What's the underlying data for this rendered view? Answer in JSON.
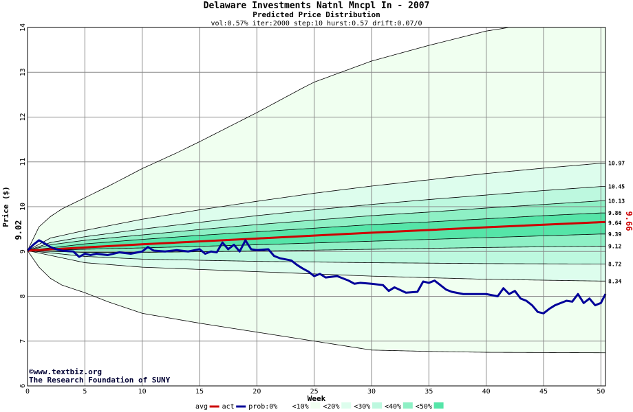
{
  "chart_data": {
    "type": "line",
    "title": "Delaware Investments Natnl Mncpl In - 2007",
    "subtitle": "Predicted Price Distribution",
    "params": "vol:0.57% iter:2000 step:10 hurst:0.57 drift:0.07/0",
    "xlabel": "Week",
    "ylabel": "Price ($)",
    "xlim": [
      0,
      50.4
    ],
    "ylim": [
      6,
      14
    ],
    "x_ticks": [
      0,
      5,
      10,
      15,
      20,
      25,
      30,
      35,
      40,
      45,
      50
    ],
    "y_ticks": [
      6,
      7,
      8,
      9,
      10,
      11,
      12,
      13,
      14
    ],
    "grid": true,
    "start_price": 9.02,
    "start_price_label": "9.02",
    "end_avg_label": "9.66",
    "band_end_labels": [
      "10.97",
      "10.45",
      "10.13",
      "9.86",
      "9.64",
      "9.39",
      "9.12",
      "8.72",
      "8.34"
    ],
    "bands": [
      {
        "name": "outer-upper",
        "x": [
          0,
          1,
          2,
          3,
          5,
          7,
          10,
          13,
          15,
          20,
          24,
          25,
          30,
          35,
          40,
          42,
          50
        ],
        "y": [
          9.02,
          9.55,
          9.78,
          9.95,
          10.2,
          10.45,
          10.85,
          11.2,
          11.45,
          12.1,
          12.65,
          12.78,
          13.25,
          13.6,
          13.92,
          14.0,
          14.0
        ]
      },
      {
        "name": "10.97",
        "x": [
          0,
          2,
          5,
          10,
          15,
          20,
          25,
          30,
          35,
          40,
          45,
          50
        ],
        "y": [
          9.02,
          9.3,
          9.47,
          9.72,
          9.93,
          10.12,
          10.3,
          10.46,
          10.6,
          10.74,
          10.86,
          10.97
        ]
      },
      {
        "name": "10.45",
        "x": [
          0,
          2,
          5,
          10,
          15,
          20,
          25,
          30,
          35,
          40,
          45,
          50
        ],
        "y": [
          9.02,
          9.2,
          9.33,
          9.5,
          9.65,
          9.8,
          9.93,
          10.05,
          10.16,
          10.26,
          10.36,
          10.45
        ]
      },
      {
        "name": "10.13",
        "x": [
          0,
          2,
          5,
          10,
          15,
          20,
          25,
          30,
          35,
          40,
          45,
          50
        ],
        "y": [
          9.02,
          9.15,
          9.25,
          9.37,
          9.49,
          9.6,
          9.7,
          9.8,
          9.88,
          9.97,
          10.05,
          10.13
        ]
      },
      {
        "name": "9.86",
        "x": [
          0,
          5,
          10,
          15,
          20,
          25,
          30,
          35,
          40,
          45,
          50
        ],
        "y": [
          9.02,
          9.17,
          9.27,
          9.36,
          9.44,
          9.52,
          9.6,
          9.66,
          9.73,
          9.8,
          9.86
        ]
      },
      {
        "name": "9.64",
        "x": [
          0,
          5,
          10,
          20,
          30,
          40,
          50
        ],
        "y": [
          9.02,
          9.1,
          9.17,
          9.3,
          9.43,
          9.54,
          9.64
        ]
      },
      {
        "name": "9.39",
        "x": [
          0,
          5,
          10,
          20,
          30,
          40,
          50
        ],
        "y": [
          9.02,
          9.05,
          9.08,
          9.15,
          9.23,
          9.31,
          9.39
        ]
      },
      {
        "name": "9.12",
        "x": [
          0,
          5,
          10,
          20,
          30,
          40,
          50
        ],
        "y": [
          9.02,
          8.98,
          8.98,
          9.01,
          9.05,
          9.09,
          9.12
        ]
      },
      {
        "name": "8.72",
        "x": [
          0,
          5,
          10,
          20,
          30,
          40,
          50
        ],
        "y": [
          9.02,
          8.89,
          8.83,
          8.78,
          8.75,
          8.73,
          8.72
        ]
      },
      {
        "name": "8.34",
        "x": [
          0,
          5,
          10,
          20,
          30,
          40,
          50
        ],
        "y": [
          9.02,
          8.75,
          8.65,
          8.55,
          8.45,
          8.38,
          8.34
        ]
      },
      {
        "name": "outer-lower",
        "x": [
          0,
          1,
          2,
          3,
          5,
          7,
          10,
          15,
          20,
          25,
          30,
          35,
          40,
          50
        ],
        "y": [
          9.02,
          8.65,
          8.4,
          8.25,
          8.08,
          7.88,
          7.62,
          7.4,
          7.2,
          7.0,
          6.8,
          6.77,
          6.75,
          6.74
        ]
      }
    ],
    "series": [
      {
        "name": "avg",
        "color": "#cc0000",
        "x": [
          0,
          10,
          20,
          30,
          40,
          50.4
        ],
        "y": [
          9.02,
          9.16,
          9.29,
          9.42,
          9.54,
          9.66
        ]
      },
      {
        "name": "act",
        "color": "#000099",
        "x": [
          0,
          0.5,
          1,
          1.5,
          2,
          2.5,
          3,
          4,
          4.5,
          5,
          5.5,
          6,
          7,
          8,
          9,
          10,
          10.5,
          11,
          12,
          13,
          14,
          15,
          15.5,
          16,
          16.5,
          17,
          17.5,
          18,
          18.5,
          19,
          19.5,
          20,
          21,
          21.5,
          22,
          23,
          23.5,
          24,
          24.5,
          25,
          25.5,
          26,
          27,
          28,
          28.5,
          29,
          30,
          31,
          31.5,
          32,
          33,
          34,
          34.5,
          35,
          35.5,
          36,
          36.5,
          37,
          38,
          39,
          40,
          41,
          41.5,
          42,
          42.5,
          43,
          43.5,
          44,
          44.5,
          45,
          45.5,
          46,
          46.5,
          47,
          47.5,
          48,
          48.5,
          49,
          49.5,
          50,
          50.4
        ],
        "y": [
          9.02,
          9.15,
          9.25,
          9.18,
          9.1,
          9.05,
          9.02,
          9.0,
          8.88,
          8.95,
          8.92,
          8.95,
          8.92,
          8.98,
          8.95,
          9.0,
          9.1,
          9.02,
          9.0,
          9.03,
          9.0,
          9.05,
          8.95,
          9.0,
          8.98,
          9.2,
          9.05,
          9.15,
          9.0,
          9.25,
          9.05,
          9.03,
          9.05,
          8.9,
          8.85,
          8.8,
          8.7,
          8.62,
          8.55,
          8.45,
          8.5,
          8.42,
          8.45,
          8.35,
          8.28,
          8.3,
          8.28,
          8.25,
          8.12,
          8.2,
          8.08,
          8.1,
          8.33,
          8.3,
          8.35,
          8.25,
          8.15,
          8.1,
          8.05,
          8.05,
          8.05,
          8.0,
          8.18,
          8.05,
          8.12,
          7.95,
          7.9,
          7.8,
          7.65,
          7.62,
          7.72,
          7.8,
          7.85,
          7.9,
          7.88,
          8.05,
          7.85,
          7.95,
          7.8,
          7.85,
          8.05
        ]
      }
    ],
    "legend": {
      "placement": "bottom-center",
      "entries": [
        {
          "label": "avg",
          "kind": "line",
          "color": "#cc0000"
        },
        {
          "label": "act",
          "kind": "line",
          "color": "#000099"
        },
        {
          "label": "prob:0%",
          "kind": "swatch",
          "color": "#ffffff"
        },
        {
          "label": "<10%",
          "kind": "swatch",
          "color": "#f0fff0"
        },
        {
          "label": "<20%",
          "kind": "swatch",
          "color": "#ddfded"
        },
        {
          "label": "<30%",
          "kind": "swatch",
          "color": "#bdf8df"
        },
        {
          "label": "<40%",
          "kind": "swatch",
          "color": "#8ef0c5"
        },
        {
          "label": "<50%",
          "kind": "swatch",
          "color": "#55e5a8"
        }
      ]
    },
    "band_colors": [
      "#f0fff0",
      "#ddfded",
      "#bdf8df",
      "#8ef0c5",
      "#55e5a8"
    ]
  },
  "credit": {
    "line1": "©www.textbiz.org",
    "line2": "The Research Foundation of SUNY"
  }
}
